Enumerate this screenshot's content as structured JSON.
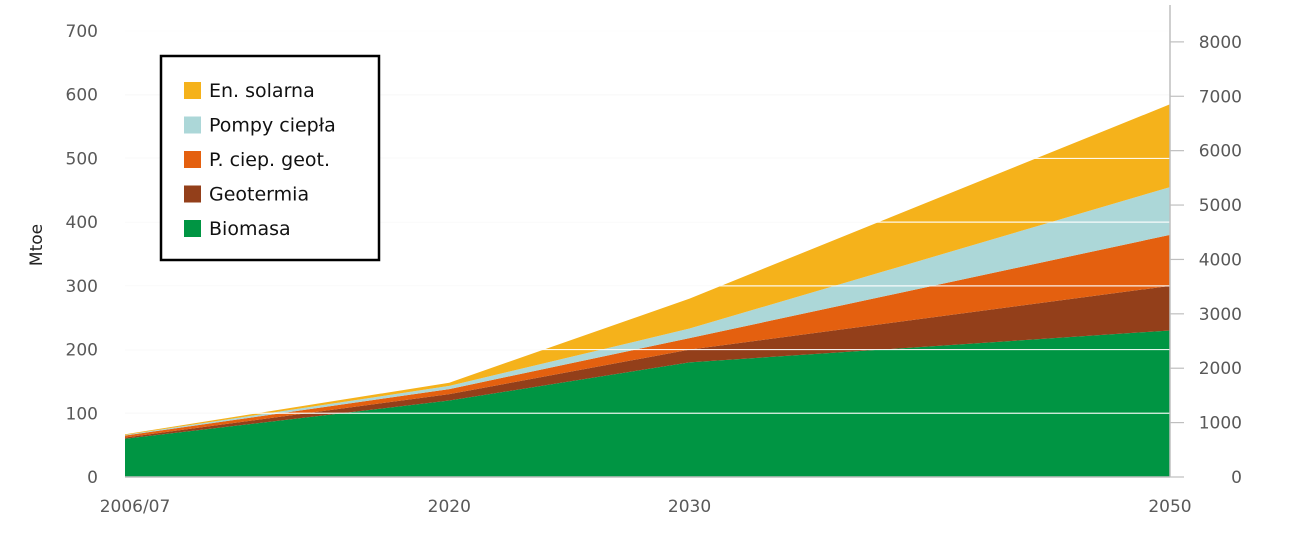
{
  "colors": {
    "solar": "#f5b21b",
    "heatpumps": "#acd7d8",
    "geothermal_heat": "#e4600f",
    "geothermal": "#933f1a",
    "biomass": "#009543",
    "grid": "#d9d9d9",
    "grid_inner": "#ffffff",
    "axis": "#bfbfbf"
  },
  "chart_data": {
    "type": "area",
    "stacked": true,
    "x": [
      "2006/07",
      "2020",
      "2030",
      "2050"
    ],
    "x_numeric": [
      2006.5,
      2020,
      2030,
      2050
    ],
    "xlim": [
      2006.5,
      2050
    ],
    "ylabel": "Mtoe",
    "ylim": [
      0,
      700
    ],
    "yticks": [
      0,
      100,
      200,
      300,
      400,
      500,
      600,
      700
    ],
    "y2lim": [
      0,
      8200
    ],
    "y2ticks": [
      0,
      1000,
      2000,
      3000,
      4000,
      5000,
      6000,
      7000,
      8000
    ],
    "legend_position": "top-left",
    "series": [
      {
        "name": "Biomasa",
        "key": "biomass",
        "values": [
          60,
          120,
          180,
          230
        ]
      },
      {
        "name": "Geotermia",
        "key": "geothermal",
        "values": [
          2,
          10,
          20,
          70
        ]
      },
      {
        "name": "P. ciep. geot.",
        "key": "geothermal_heat",
        "values": [
          3,
          8,
          18,
          80
        ]
      },
      {
        "name": "Pompy ciepła",
        "key": "heatpumps",
        "values": [
          1,
          5,
          15,
          75
        ]
      },
      {
        "name": "En. solarna",
        "key": "solar",
        "values": [
          1,
          5,
          47,
          130
        ]
      }
    ],
    "legend_order": [
      "solar",
      "heatpumps",
      "geothermal_heat",
      "geothermal",
      "biomass"
    ]
  }
}
